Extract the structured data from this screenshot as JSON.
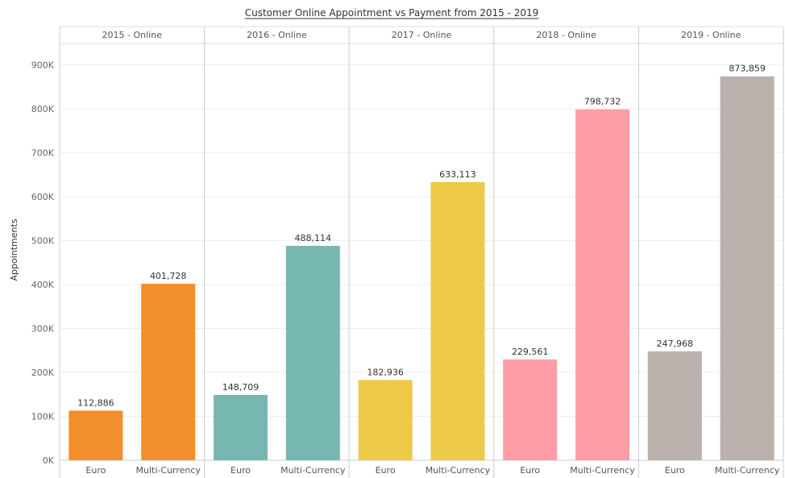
{
  "chart_data": {
    "type": "bar",
    "title": "Customer Online Appointment vs Payment from 2015 - 2019",
    "ylabel": "Appointments",
    "ylim": [
      0,
      900000
    ],
    "yticks": [
      0,
      100000,
      200000,
      300000,
      400000,
      500000,
      600000,
      700000,
      800000,
      900000
    ],
    "ytick_labels": [
      "0K",
      "100K",
      "200K",
      "300K",
      "400K",
      "500K",
      "600K",
      "700K",
      "800K",
      "900K"
    ],
    "grid": true,
    "categories": [
      "Euro",
      "Multi-Currency"
    ],
    "panels": [
      {
        "header": "2015 - Online",
        "color": "#f28e2b",
        "values": [
          112886,
          401728
        ],
        "labels": [
          "112,886",
          "401,728"
        ]
      },
      {
        "header": "2016 - Online",
        "color": "#76b7b2",
        "values": [
          148709,
          488114
        ],
        "labels": [
          "148,709",
          "488,114"
        ]
      },
      {
        "header": "2017 - Online",
        "color": "#edc948",
        "values": [
          182936,
          633113
        ],
        "labels": [
          "182,936",
          "633,113"
        ]
      },
      {
        "header": "2018 - Online",
        "color": "#ff9da7",
        "values": [
          229561,
          798732
        ],
        "labels": [
          "229,561",
          "798,732"
        ]
      },
      {
        "header": "2019 - Online",
        "color": "#bab0ac",
        "values": [
          247968,
          873859
        ],
        "labels": [
          "247,968",
          "873,859"
        ]
      }
    ]
  }
}
